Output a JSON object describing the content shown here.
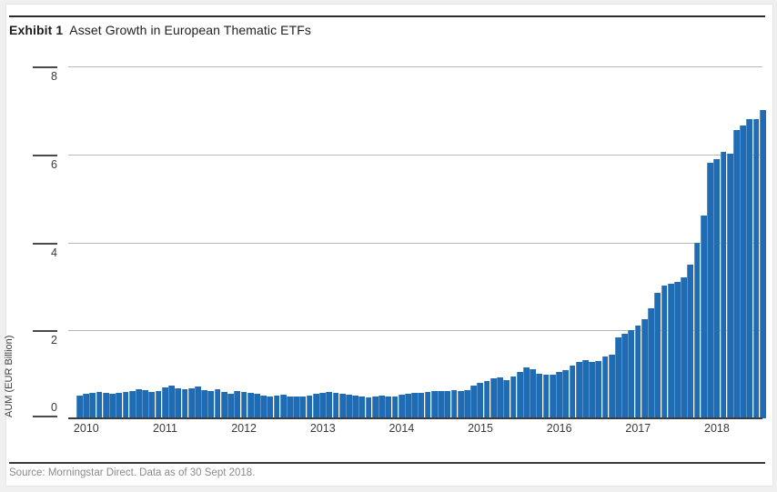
{
  "header": {
    "exhibit_label": "Exhibit 1",
    "title": "Asset Growth in European Thematic ETFs"
  },
  "footer": {
    "source": "Source: Morningstar Direct. Data as of 30 Sept 2018."
  },
  "chart_data": {
    "type": "bar",
    "title": "Asset Growth in European Thematic ETFs",
    "xlabel": "",
    "ylabel": "AUM (EUR Billion)",
    "ylim": [
      0,
      8
    ],
    "y_ticks": [
      8,
      6,
      4,
      2,
      0
    ],
    "x_year_labels": [
      "2010",
      "2011",
      "2012",
      "2013",
      "2014",
      "2015",
      "2016",
      "2017",
      "2018"
    ],
    "frequency": "monthly",
    "period_start": "2010-01",
    "period_end": "2018-09",
    "grid": true,
    "legend": false,
    "bar_color": "#1f6cb4",
    "values": [
      0.52,
      0.55,
      0.58,
      0.6,
      0.58,
      0.55,
      0.57,
      0.6,
      0.63,
      0.66,
      0.64,
      0.61,
      0.63,
      0.7,
      0.75,
      0.68,
      0.67,
      0.68,
      0.72,
      0.65,
      0.63,
      0.66,
      0.6,
      0.55,
      0.63,
      0.6,
      0.57,
      0.55,
      0.52,
      0.5,
      0.51,
      0.53,
      0.5,
      0.49,
      0.5,
      0.51,
      0.55,
      0.58,
      0.6,
      0.58,
      0.55,
      0.53,
      0.52,
      0.5,
      0.48,
      0.5,
      0.52,
      0.5,
      0.5,
      0.53,
      0.56,
      0.58,
      0.58,
      0.6,
      0.62,
      0.63,
      0.62,
      0.64,
      0.63,
      0.65,
      0.75,
      0.8,
      0.85,
      0.9,
      0.93,
      0.87,
      0.95,
      1.05,
      1.15,
      1.12,
      1.02,
      1.0,
      1.0,
      1.05,
      1.1,
      1.2,
      1.28,
      1.33,
      1.28,
      1.31,
      1.4,
      1.45,
      1.85,
      1.92,
      2.0,
      2.1,
      2.25,
      2.5,
      2.85,
      3.02,
      3.05,
      3.1,
      3.2,
      3.5,
      4.0,
      4.6,
      5.8,
      5.9,
      6.05,
      6.02,
      6.55,
      6.65,
      6.8,
      6.8,
      7.0
    ]
  }
}
